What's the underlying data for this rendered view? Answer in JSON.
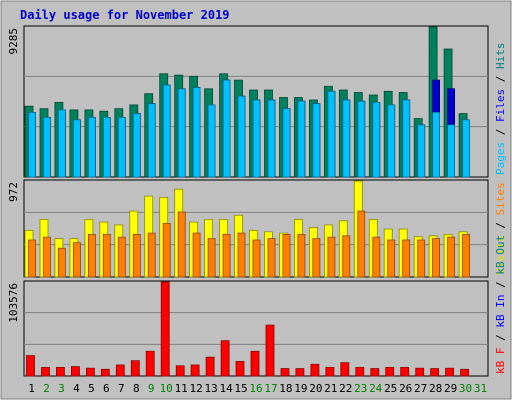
{
  "chart_data": {
    "type": "bar",
    "title": "Daily usage for November 2019",
    "categories": [
      "1",
      "2",
      "3",
      "4",
      "5",
      "6",
      "7",
      "8",
      "9",
      "10",
      "11",
      "12",
      "13",
      "14",
      "15",
      "16",
      "17",
      "18",
      "19",
      "20",
      "21",
      "22",
      "23",
      "24",
      "25",
      "26",
      "27",
      "28",
      "29",
      "30",
      "31"
    ],
    "weekend_days": [
      "2",
      "3",
      "9",
      "10",
      "16",
      "17",
      "23",
      "24",
      "30",
      "31"
    ],
    "panels": [
      {
        "id": "hits_files_pages",
        "max_label": "9285",
        "ylim": [
          0,
          9285
        ],
        "legend": [
          {
            "text": "Pages",
            "color": "#00c0ff"
          },
          {
            "text": " / ",
            "color": "#000000"
          },
          {
            "text": "Files",
            "color": "#0000ff"
          },
          {
            "text": " / ",
            "color": "#000000"
          },
          {
            "text": "Hits",
            "color": "#008080"
          }
        ],
        "series": [
          {
            "name": "Hits",
            "color": "#00805c",
            "values": [
              4384,
              4230,
              4615,
              4154,
              4154,
              4076,
              4230,
              4461,
              5154,
              6385,
              6308,
              6231,
              5461,
              6385,
              6000,
              5384,
              5384,
              4923,
              4923,
              4769,
              5615,
              5384,
              5231,
              5077,
              5307,
              5231,
              3615,
              9285,
              7923,
              3923,
              null
            ]
          },
          {
            "name": "Files",
            "color": "#0000cc",
            "values": [
              4000,
              3692,
              4154,
              3538,
              3692,
              3692,
              3692,
              3923,
              4538,
              5692,
              5461,
              5538,
              4461,
              6000,
              5000,
              4769,
              4769,
              4230,
              4692,
              4538,
              5307,
              4769,
              4692,
              4615,
              4461,
              4769,
              3231,
              6000,
              5461,
              3384,
              null
            ]
          },
          {
            "name": "Pages",
            "color": "#00c0ff",
            "values": [
              4000,
              3692,
              4154,
              3538,
              3692,
              3692,
              3692,
              3923,
              4538,
              5692,
              5461,
              5538,
              4461,
              6000,
              5000,
              4769,
              4769,
              4230,
              4692,
              4538,
              5307,
              4769,
              4692,
              4615,
              4461,
              4769,
              3231,
              4000,
              3231,
              3538,
              null
            ]
          }
        ]
      },
      {
        "id": "visits_sites",
        "max_label": "972",
        "ylim": [
          0,
          972
        ],
        "legend": [
          {
            "text": "Visits",
            "color": "#e0e000"
          },
          {
            "text": " / ",
            "color": "#000000"
          },
          {
            "text": "Sites",
            "color": "#ff8000"
          }
        ],
        "series": [
          {
            "name": "Visits",
            "color": "#ffff00",
            "values": [
              472,
              583,
              389,
              389,
              583,
              556,
              528,
              667,
              819,
              806,
              889,
              556,
              583,
              583,
              625,
              472,
              458,
              444,
              583,
              500,
              528,
              569,
              972,
              583,
              486,
              486,
              408,
              417,
              431,
              458,
              null
            ]
          },
          {
            "name": "Sites",
            "color": "#ff8000",
            "values": [
              375,
              403,
              292,
              347,
              431,
              431,
              403,
              431,
              444,
              542,
              658,
              444,
              389,
              431,
              444,
              375,
              389,
              431,
              431,
              389,
              403,
              417,
              667,
              403,
              375,
              375,
              375,
              389,
              403,
              431,
              null
            ]
          }
        ]
      },
      {
        "id": "kbf_kbin_kbout",
        "max_label": "103576",
        "ylim": [
          0,
          103576
        ],
        "legend": [
          {
            "text": "kB F",
            "color": "#ff0000"
          },
          {
            "text": " / ",
            "color": "#000000"
          },
          {
            "text": "kB In",
            "color": "#0000ff"
          },
          {
            "text": " / ",
            "color": "#000000"
          },
          {
            "text": "kB Out",
            "color": "#008080"
          }
        ],
        "series": [
          {
            "name": "kB F",
            "color": "#ff0000",
            "values": [
              22442,
              9495,
              9495,
              10358,
              8632,
              7337,
              12084,
              16831,
              27189,
              103576,
              11221,
              12084,
              20716,
              38843,
              16141,
              27189,
              56102,
              8201,
              8201,
              12947,
              9495,
              14673,
              9495,
              8201,
              9495,
              9495,
              8632,
              8201,
              8632,
              7337,
              null
            ]
          }
        ]
      }
    ]
  }
}
